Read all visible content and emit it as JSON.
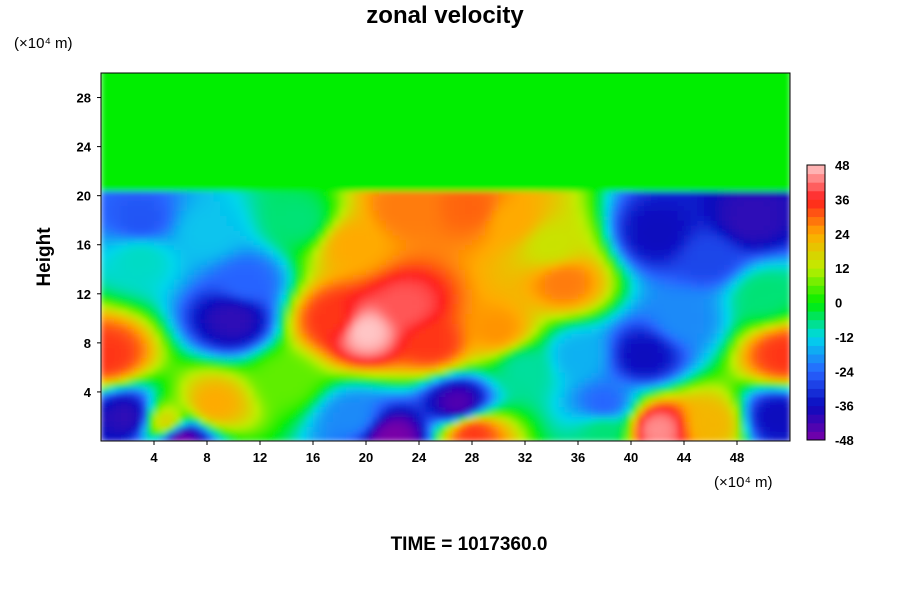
{
  "chart_data": {
    "type": "heatmap",
    "title": "zonal velocity",
    "ylabel": "Height",
    "x_unit_label": "(×10⁴ m)",
    "y_unit_label": "(×10⁴ m)",
    "footer": "TIME = 1017360.0",
    "xlim": [
      0,
      52
    ],
    "ylim": [
      0,
      30
    ],
    "x_ticks": [
      4,
      8,
      12,
      16,
      20,
      24,
      28,
      32,
      36,
      40,
      44,
      48
    ],
    "y_ticks": [
      4,
      8,
      12,
      16,
      20,
      24,
      28
    ],
    "colorbar": {
      "range": [
        -48,
        48
      ],
      "ticks": [
        -48,
        -36,
        -24,
        -12,
        0,
        12,
        24,
        36,
        48
      ]
    },
    "colors": {
      "neutral": "#00ee00",
      "positive_max": "#ffc8c8",
      "negative_max": "#7a00a8"
    },
    "features": [
      {
        "x": 0.5,
        "y": 7,
        "value": 34
      },
      {
        "x": 3,
        "y": 18,
        "value": -26
      },
      {
        "x": 3,
        "y": 15,
        "value": -10
      },
      {
        "x": 2,
        "y": 2,
        "value": -40
      },
      {
        "x": 6,
        "y": 0.3,
        "value": -48
      },
      {
        "x": 5,
        "y": 1.5,
        "value": 18
      },
      {
        "x": 8.5,
        "y": 3,
        "value": 24
      },
      {
        "x": 10,
        "y": 10,
        "value": -40
      },
      {
        "x": 11,
        "y": 13,
        "value": -24
      },
      {
        "x": 8,
        "y": 17,
        "value": -14
      },
      {
        "x": 14,
        "y": 5,
        "value": 6
      },
      {
        "x": 15,
        "y": 18,
        "value": -6
      },
      {
        "x": 20,
        "y": 9,
        "value": 48
      },
      {
        "x": 17.5,
        "y": 10,
        "value": 34
      },
      {
        "x": 23,
        "y": 11,
        "value": 40
      },
      {
        "x": 25,
        "y": 8,
        "value": 34
      },
      {
        "x": 19,
        "y": 16,
        "value": 24
      },
      {
        "x": 23,
        "y": 19,
        "value": 28
      },
      {
        "x": 28,
        "y": 19,
        "value": 30
      },
      {
        "x": 31,
        "y": 18,
        "value": 24
      },
      {
        "x": 35,
        "y": 13,
        "value": 28
      },
      {
        "x": 30,
        "y": 9,
        "value": 26
      },
      {
        "x": 34,
        "y": 16,
        "value": 14
      },
      {
        "x": 19,
        "y": 2,
        "value": -20
      },
      {
        "x": 22,
        "y": 0.3,
        "value": -48
      },
      {
        "x": 27,
        "y": 3,
        "value": -44
      },
      {
        "x": 28,
        "y": 0.8,
        "value": 34
      },
      {
        "x": 32,
        "y": 6,
        "value": -8
      },
      {
        "x": 36,
        "y": 7,
        "value": -16
      },
      {
        "x": 38,
        "y": 3,
        "value": -24
      },
      {
        "x": 41,
        "y": 7,
        "value": -36
      },
      {
        "x": 44,
        "y": 10,
        "value": -20
      },
      {
        "x": 42,
        "y": 17,
        "value": -36
      },
      {
        "x": 46,
        "y": 15,
        "value": -28
      },
      {
        "x": 49,
        "y": 18,
        "value": -40
      },
      {
        "x": 50,
        "y": 12,
        "value": -6
      },
      {
        "x": 51.5,
        "y": 7,
        "value": 34
      },
      {
        "x": 42,
        "y": 1,
        "value": 44
      },
      {
        "x": 46,
        "y": 1.5,
        "value": 22
      },
      {
        "x": 51,
        "y": 2,
        "value": -36
      },
      {
        "x": 38,
        "y": 1,
        "value": -6
      }
    ]
  }
}
